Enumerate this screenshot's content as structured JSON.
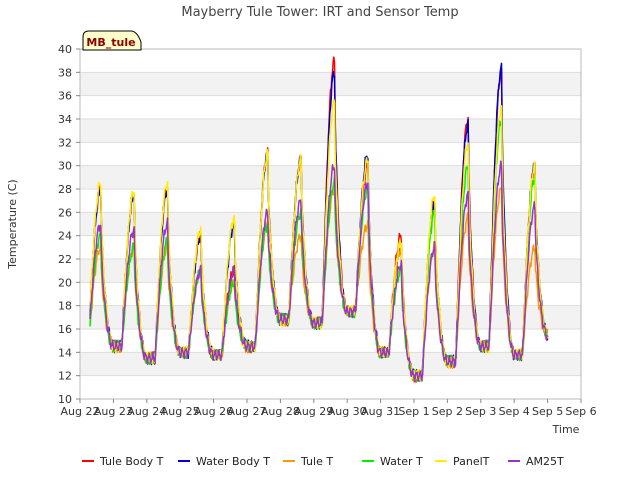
{
  "chart_data": {
    "type": "line",
    "title": "Mayberry Tule Tower: IRT and Sensor Temp",
    "badge": "MB_tule",
    "xlabel": "Time",
    "ylabel": "Temperature (C)",
    "xlim": [
      0,
      15
    ],
    "ylim": [
      10,
      40
    ],
    "x_ticks": [
      0,
      1,
      2,
      3,
      4,
      5,
      6,
      7,
      8,
      9,
      10,
      11,
      12,
      13,
      14,
      15
    ],
    "x_tick_labels": [
      "Aug 22",
      "Aug 23",
      "Aug 24",
      "Aug 25",
      "Aug 26",
      "Aug 27",
      "Aug 28",
      "Aug 29",
      "Aug 30",
      "Aug 31",
      "Sep 1",
      "Sep 2",
      "Sep 3",
      "Sep 4",
      "Sep 5",
      "Sep 6"
    ],
    "y_ticks": [
      10,
      12,
      14,
      16,
      18,
      20,
      22,
      24,
      26,
      28,
      30,
      32,
      34,
      36,
      38,
      40
    ],
    "x_start": 0.3,
    "x_end": 14.0,
    "daily_min": [
      14.5,
      14.5,
      13.5,
      14.0,
      13.8,
      14.5,
      16.8,
      16.5,
      17.5,
      14.0,
      12.0,
      13.2,
      14.5,
      13.8,
      15.5
    ],
    "series": [
      {
        "name": "Tule Body T",
        "color": "#ff0000",
        "peaks": [
          28.0,
          27.5,
          28.0,
          24.0,
          21.0,
          31.0,
          30.5,
          39.0,
          30.0,
          24.0,
          27.0,
          34.0,
          38.0,
          30.0
        ]
      },
      {
        "name": "Water Body T",
        "color": "#0000cc",
        "peaks": [
          28.0,
          27.5,
          28.0,
          24.0,
          25.0,
          31.0,
          30.5,
          38.0,
          31.0,
          23.0,
          27.0,
          33.5,
          38.3,
          30.0
        ]
      },
      {
        "name": "Tule T",
        "color": "#ff9900",
        "peaks": [
          23.0,
          23.0,
          23.0,
          21.0,
          20.0,
          25.0,
          24.0,
          28.0,
          25.0,
          23.0,
          23.0,
          25.5,
          28.0,
          23.0
        ]
      },
      {
        "name": "Water T",
        "color": "#00ee00",
        "peaks": [
          24.0,
          23.0,
          23.5,
          21.0,
          20.0,
          25.0,
          26.0,
          28.5,
          28.0,
          21.0,
          26.0,
          30.0,
          34.0,
          29.0
        ]
      },
      {
        "name": "PanelT",
        "color": "#ffee00",
        "peaks": [
          28.5,
          27.8,
          28.5,
          24.5,
          25.5,
          31.0,
          30.5,
          35.5,
          30.5,
          23.5,
          27.5,
          32.0,
          35.0,
          30.0
        ]
      },
      {
        "name": "AM25T",
        "color": "#9933cc",
        "peaks": [
          25.0,
          24.5,
          25.0,
          21.0,
          21.0,
          26.0,
          27.0,
          30.0,
          28.5,
          21.5,
          23.0,
          27.5,
          30.0,
          26.5
        ]
      }
    ]
  }
}
